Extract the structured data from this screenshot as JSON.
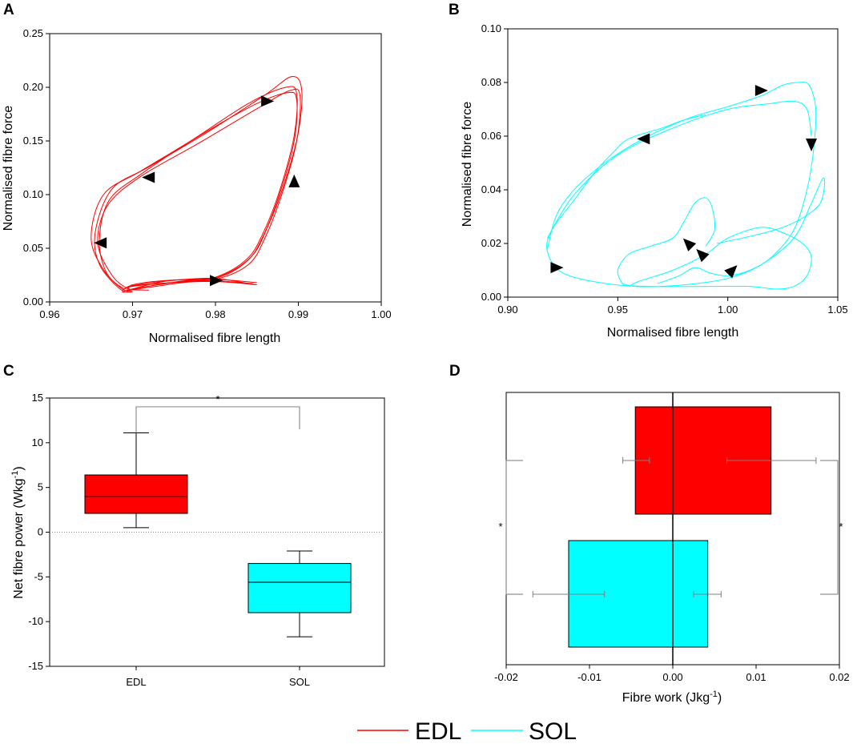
{
  "colors": {
    "edl": "#ff0000",
    "sol": "#00ffff",
    "axis": "#000000",
    "bracket": "#808080"
  },
  "legend": {
    "items": [
      {
        "label": "EDL",
        "color": "#ff0000"
      },
      {
        "label": "SOL",
        "color": "#00ffff"
      }
    ]
  },
  "chart_data": [
    {
      "panel": "A",
      "type": "line",
      "xlabel": "Normalised fibre length",
      "ylabel": "Normalised fibre force",
      "xlim": [
        0.96,
        1.0
      ],
      "ylim": [
        0,
        0.25
      ],
      "xticks": [
        0.96,
        0.97,
        0.98,
        0.99,
        1.0
      ],
      "xtick_labels": [
        "0.96",
        "0.97",
        "0.98",
        "0.99",
        "1.00"
      ],
      "yticks": [
        0,
        0.05,
        0.1,
        0.15,
        0.2,
        0.25
      ],
      "ytick_labels": [
        "0.00",
        "0.05",
        "0.10",
        "0.15",
        "0.20",
        "0.25"
      ],
      "series": [
        {
          "name": "EDL loop 1",
          "x": [
            0.985,
            0.98,
            0.975,
            0.97,
            0.9695,
            0.9675,
            0.9658,
            0.967,
            0.971,
            0.978,
            0.985,
            0.989,
            0.9902,
            0.9898,
            0.988,
            0.986,
            0.984,
            0.98,
            0.975,
            0.97,
            0.972
          ],
          "y": [
            0.016,
            0.019,
            0.018,
            0.015,
            0.012,
            0.025,
            0.055,
            0.09,
            0.117,
            0.148,
            0.18,
            0.197,
            0.192,
            0.15,
            0.1,
            0.06,
            0.035,
            0.021,
            0.018,
            0.012,
            0.011
          ]
        },
        {
          "name": "EDL loop 2",
          "x": [
            0.985,
            0.98,
            0.974,
            0.97,
            0.969,
            0.9665,
            0.965,
            0.9665,
            0.971,
            0.977,
            0.984,
            0.9885,
            0.9898,
            0.9895,
            0.9878,
            0.9858,
            0.9838,
            0.98,
            0.975,
            0.969,
            0.97
          ],
          "y": [
            0.018,
            0.021,
            0.02,
            0.016,
            0.011,
            0.03,
            0.06,
            0.1,
            0.122,
            0.15,
            0.185,
            0.2,
            0.194,
            0.155,
            0.105,
            0.065,
            0.04,
            0.023,
            0.017,
            0.01,
            0.009
          ]
        },
        {
          "name": "EDL loop 3",
          "x": [
            0.9845,
            0.979,
            0.973,
            0.9695,
            0.9685,
            0.966,
            0.9655,
            0.9675,
            0.972,
            0.979,
            0.986,
            0.9892,
            0.9904,
            0.99,
            0.9883,
            0.9863,
            0.9843,
            0.9805,
            0.9755,
            0.97,
            0.9705
          ],
          "y": [
            0.017,
            0.02,
            0.017,
            0.014,
            0.012,
            0.035,
            0.065,
            0.105,
            0.126,
            0.158,
            0.193,
            0.21,
            0.198,
            0.158,
            0.11,
            0.07,
            0.042,
            0.024,
            0.019,
            0.012,
            0.012
          ]
        },
        {
          "name": "EDL loop 4",
          "x": [
            0.9848,
            0.9795,
            0.9735,
            0.9698,
            0.9688,
            0.9668,
            0.966,
            0.9672,
            0.9712,
            0.9775,
            0.9845,
            0.9887,
            0.9898,
            0.9895,
            0.9878,
            0.9858,
            0.9838,
            0.98,
            0.9745,
            0.9695,
            0.97
          ],
          "y": [
            0.016,
            0.022,
            0.019,
            0.015,
            0.013,
            0.028,
            0.058,
            0.095,
            0.12,
            0.152,
            0.183,
            0.195,
            0.188,
            0.15,
            0.102,
            0.062,
            0.038,
            0.022,
            0.02,
            0.011,
            0.01
          ]
        }
      ],
      "arrows": [
        {
          "x": 0.9862,
          "y": 0.187,
          "dir": "right"
        },
        {
          "x": 0.972,
          "y": 0.116,
          "dir": "left"
        },
        {
          "x": 0.9662,
          "y": 0.055,
          "dir": "left"
        },
        {
          "x": 0.98,
          "y": 0.02,
          "dir": "right"
        },
        {
          "x": 0.9895,
          "y": 0.112,
          "dir": "up"
        }
      ]
    },
    {
      "panel": "B",
      "type": "line",
      "xlabel": "Normalised fibre length",
      "ylabel": "Normalised fibre force",
      "xlim": [
        0.9,
        1.05
      ],
      "ylim": [
        0,
        0.1
      ],
      "xticks": [
        0.9,
        0.95,
        1.0,
        1.05
      ],
      "xtick_labels": [
        "0.90",
        "0.95",
        "1.00",
        "1.05"
      ],
      "yticks": [
        0,
        0.02,
        0.04,
        0.06,
        0.08,
        0.1
      ],
      "ytick_labels": [
        "0.00",
        "0.02",
        "0.04",
        "0.06",
        "0.08",
        "0.10"
      ],
      "series": [
        {
          "name": "SOL loop 1",
          "x": [
            0.99,
            0.98,
            0.97,
            0.955,
            0.948,
            0.94,
            0.93,
            0.92,
            0.918,
            0.925,
            0.945,
            0.965,
            0.99,
            1.01,
            1.022,
            1.03,
            1.036,
            1.038,
            1.034,
            1.025,
            1.015,
            1.0,
            0.99,
            0.975,
            0.96,
            0.955
          ],
          "y": [
            0.068,
            0.066,
            0.063,
            0.059,
            0.054,
            0.047,
            0.036,
            0.025,
            0.017,
            0.009,
            0.005,
            0.004,
            0.004,
            0.004,
            0.003,
            0.004,
            0.008,
            0.015,
            0.02,
            0.024,
            0.026,
            0.022,
            0.016,
            0.01,
            0.006,
            0.004
          ]
        },
        {
          "name": "SOL loop 2",
          "x": [
            0.918,
            0.923,
            0.935,
            0.955,
            0.98,
            1.0,
            1.015,
            1.025,
            1.032,
            1.037,
            1.04,
            1.039,
            1.036,
            1.03,
            1.02,
            1.01,
            1.0,
            0.992,
            0.985,
            0.978,
            0.968
          ],
          "y": [
            0.018,
            0.032,
            0.044,
            0.056,
            0.066,
            0.071,
            0.075,
            0.079,
            0.08,
            0.079,
            0.07,
            0.055,
            0.04,
            0.025,
            0.015,
            0.01,
            0.008,
            0.009,
            0.011,
            0.008,
            0.005
          ]
        },
        {
          "name": "SOL loop 3",
          "x": [
            0.99,
            0.994,
            0.993,
            0.99,
            0.985,
            0.98,
            0.975,
            0.965,
            0.955,
            0.95,
            0.952
          ],
          "y": [
            0.019,
            0.025,
            0.033,
            0.037,
            0.035,
            0.028,
            0.022,
            0.019,
            0.016,
            0.01,
            0.005
          ]
        },
        {
          "name": "SOL loop 4",
          "x": [
            0.918,
            0.93,
            0.95,
            0.975,
            1.0,
            1.018,
            1.03,
            1.036,
            1.038
          ],
          "y": [
            0.022,
            0.038,
            0.053,
            0.063,
            0.07,
            0.072,
            0.073,
            0.07,
            0.06
          ]
        },
        {
          "name": "SOL loop 5",
          "x": [
            0.995,
            1.012,
            1.025,
            1.035,
            1.042,
            1.044,
            1.043,
            1.038,
            1.03,
            1.015,
            1.0,
            0.985,
            0.97,
            0.958,
            0.952
          ],
          "y": [
            0.02,
            0.023,
            0.026,
            0.03,
            0.035,
            0.042,
            0.044,
            0.035,
            0.022,
            0.012,
            0.007,
            0.005,
            0.004,
            0.004,
            0.005
          ]
        }
      ],
      "arrows": [
        {
          "x": 1.015,
          "y": 0.077,
          "dir": "right"
        },
        {
          "x": 0.962,
          "y": 0.059,
          "dir": "left"
        },
        {
          "x": 1.038,
          "y": 0.057,
          "dir": "down"
        },
        {
          "x": 0.922,
          "y": 0.011,
          "dir": "right"
        },
        {
          "x": 0.982,
          "y": 0.02,
          "dir": "up-left"
        },
        {
          "x": 0.988,
          "y": 0.016,
          "dir": "up-left"
        },
        {
          "x": 1.002,
          "y": 0.01,
          "dir": "up-right"
        }
      ]
    },
    {
      "panel": "C",
      "type": "box",
      "ylabel": "Net fibre power (Wkg",
      "ylabel_sup": "-1",
      "ylabel_end": ")",
      "ylim": [
        -15,
        15
      ],
      "yticks": [
        -15,
        -10,
        -5,
        0,
        5,
        10,
        15
      ],
      "ytick_labels": [
        "-15",
        "-10",
        "-5",
        "0",
        "5",
        "10",
        "15"
      ],
      "categories": [
        "EDL",
        "SOL"
      ],
      "boxes": [
        {
          "name": "EDL",
          "whisker_min": 0.5,
          "q1": 2.1,
          "median": 4.0,
          "q3": 6.4,
          "whisker_max": 11.1
        },
        {
          "name": "SOL",
          "whisker_min": -11.7,
          "q1": -9.0,
          "median": -5.6,
          "q3": -3.5,
          "whisker_max": -2.1
        }
      ],
      "significance": "*"
    },
    {
      "panel": "D",
      "type": "bar",
      "xlabel": "Fibre work (Jkg",
      "xlabel_sup": "-1",
      "xlabel_end": ")",
      "xlim": [
        -0.02,
        0.02
      ],
      "xticks": [
        -0.02,
        -0.01,
        0.0,
        0.01,
        0.02
      ],
      "xtick_labels": [
        "-0.02",
        "-0.01",
        "0.00",
        "0.01",
        "0.02"
      ],
      "bars": [
        {
          "name": "EDL",
          "left": -0.0045,
          "right": 0.0118,
          "err_neg_low": -0.006,
          "err_neg_high": -0.0028,
          "err_pos_low": 0.0065,
          "err_pos_high": 0.0172
        },
        {
          "name": "SOL",
          "left": -0.0125,
          "right": 0.0042,
          "err_neg_low": -0.0168,
          "err_neg_high": -0.0082,
          "err_pos_low": 0.0025,
          "err_pos_high": 0.0058
        }
      ],
      "significance_left": "*",
      "significance_right": "*"
    }
  ]
}
